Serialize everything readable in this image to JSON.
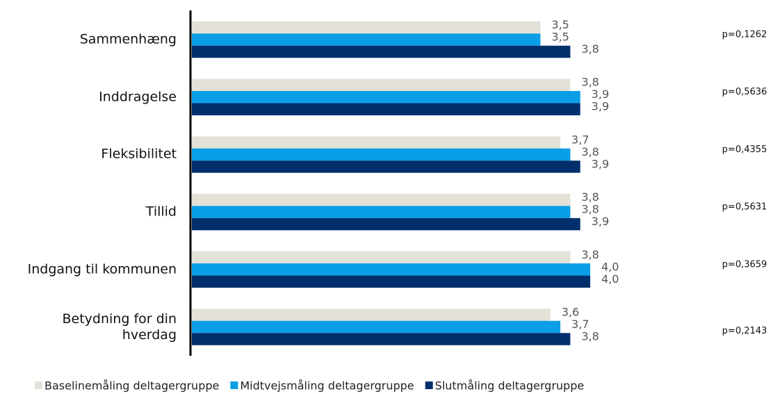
{
  "chart_data": {
    "type": "hbar",
    "categories": [
      "Sammenhæng",
      "Inddragelse",
      "Fleksibilitet",
      "Tillid",
      "Indgang til kommunen",
      "Betydning for din hverdag"
    ],
    "series": [
      {
        "name": "Baselinemåling deltagergruppe",
        "color": "#e4e1d8",
        "values": [
          3.5,
          3.8,
          3.7,
          3.8,
          3.8,
          3.6
        ],
        "value_labels": [
          "3,5",
          "3,8",
          "3,7",
          "3,8",
          "3,8",
          "3,6"
        ]
      },
      {
        "name": "Midtvejsmåling deltagergruppe",
        "color": "#0a9ee6",
        "values": [
          3.5,
          3.9,
          3.8,
          3.8,
          4.0,
          3.7
        ],
        "value_labels": [
          "3,5",
          "3,9",
          "3,8",
          "3,8",
          "4,0",
          "3,7"
        ]
      },
      {
        "name": "Slutmåling deltagergruppe",
        "color": "#002f6c",
        "values": [
          3.8,
          3.9,
          3.9,
          3.9,
          4.0,
          3.8
        ],
        "value_labels": [
          "3,8",
          "3,9",
          "3,9",
          "3,9",
          "4,0",
          "3,8"
        ]
      }
    ],
    "annotations": [
      "p=0,1262",
      "p=0,5636",
      "p=0,4355",
      "p=0,5631",
      "p=0,3659",
      "p=0,2143"
    ],
    "xlim": [
      0,
      4
    ]
  }
}
